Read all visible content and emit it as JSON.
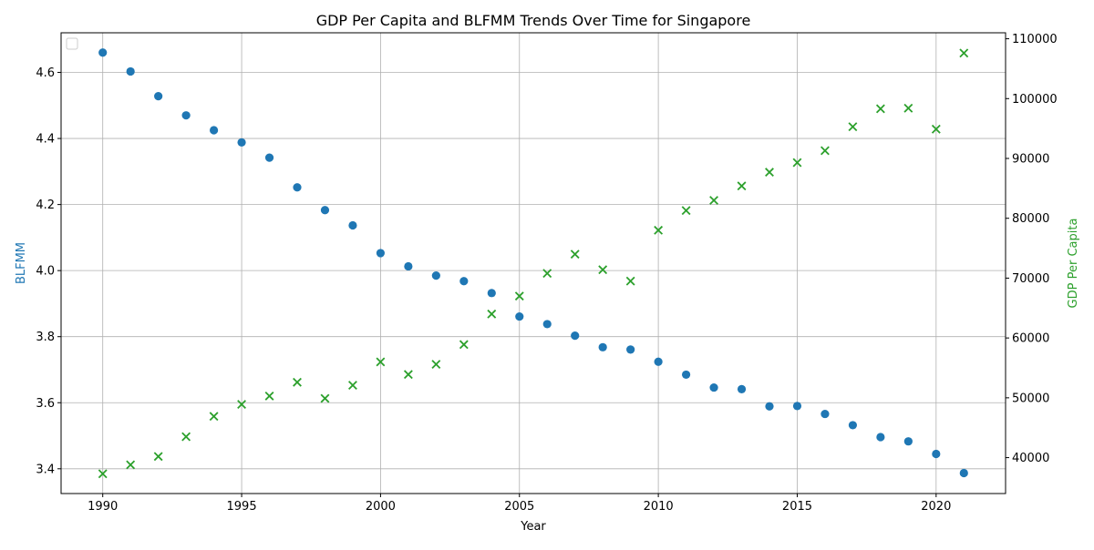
{
  "chart_data": {
    "type": "scatter",
    "title": "GDP Per Capita and BLFMM Trends Over Time for Singapore",
    "xlabel": "Year",
    "ylabel_left": "BLFMM",
    "ylabel_right": "GDP Per Capita",
    "xlim": [
      1988.5,
      2022.5
    ],
    "ylim_left": [
      3.325,
      4.72
    ],
    "ylim_right": [
      34000,
      111000
    ],
    "x_ticks": [
      1990,
      1995,
      2000,
      2005,
      2010,
      2015,
      2020
    ],
    "y_ticks_left": [
      3.4,
      3.6,
      3.8,
      4.0,
      4.2,
      4.4,
      4.6
    ],
    "y_ticks_left_labels": [
      "3.4",
      "3.6",
      "3.8",
      "4.0",
      "4.2",
      "4.4",
      "4.6"
    ],
    "y_ticks_right": [
      40000,
      50000,
      60000,
      70000,
      80000,
      90000,
      100000,
      110000
    ],
    "grid": true,
    "legend": "top-left (empty)",
    "colors": {
      "blfmm": "#1f77b4",
      "gdp": "#2ca02c",
      "axes": "#000000",
      "grid": "#b0b0b0"
    },
    "x": [
      1990,
      1991,
      1992,
      1993,
      1994,
      1995,
      1996,
      1997,
      1998,
      1999,
      2000,
      2001,
      2002,
      2003,
      2004,
      2005,
      2006,
      2007,
      2008,
      2009,
      2010,
      2011,
      2012,
      2013,
      2014,
      2015,
      2016,
      2017,
      2018,
      2019,
      2020,
      2021
    ],
    "series": [
      {
        "axis": "left",
        "marker": "circle",
        "values": [
          4.66,
          4.603,
          4.528,
          4.47,
          4.425,
          4.388,
          4.342,
          4.252,
          4.183,
          4.137,
          4.053,
          4.013,
          3.985,
          3.968,
          3.932,
          3.861,
          3.838,
          3.803,
          3.768,
          3.761,
          3.724,
          3.685,
          3.646,
          3.641,
          3.589,
          3.59,
          3.566,
          3.532,
          3.496,
          3.483,
          3.445,
          3.387
        ]
      },
      {
        "axis": "right",
        "marker": "x",
        "values": [
          37300,
          38800,
          40200,
          43500,
          46900,
          48900,
          50300,
          52600,
          49900,
          52100,
          56000,
          53900,
          55600,
          58900,
          64000,
          67000,
          70800,
          74000,
          71400,
          69500,
          78000,
          81300,
          83000,
          85400,
          87700,
          89300,
          91300,
          95300,
          98300,
          98400,
          94900,
          107600
        ]
      }
    ]
  }
}
